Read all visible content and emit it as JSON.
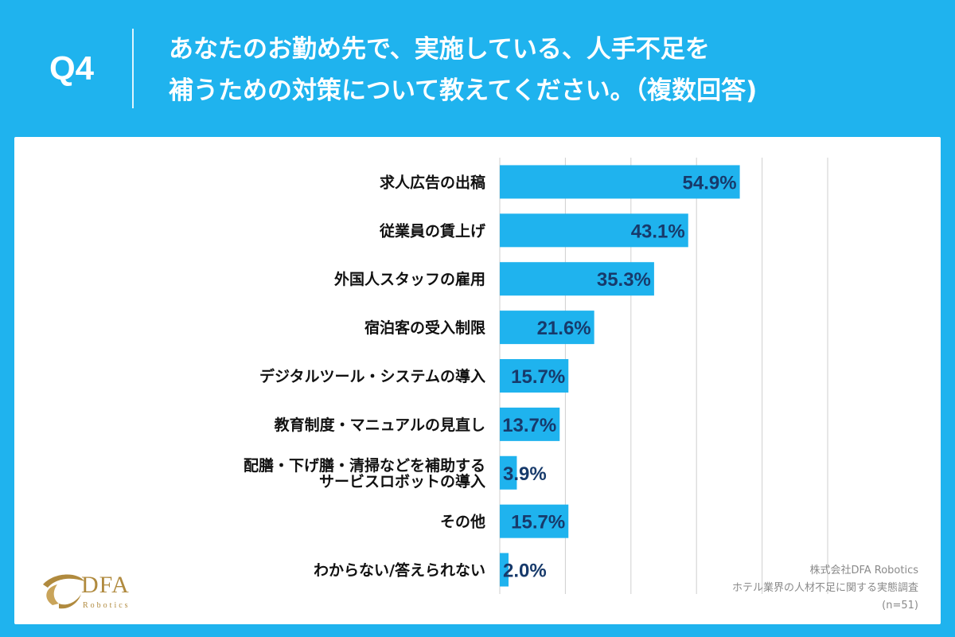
{
  "header": {
    "question_label": "Q4",
    "title_line1": "あなたのお勤め先で、実施している、人手不足を",
    "title_line2": "補うための対策について教えてください。（複数回答)"
  },
  "chart_data": {
    "type": "bar",
    "orientation": "horizontal",
    "categories": [
      "求人広告の出稿",
      "従業員の賃上げ",
      "外国人スタッフの雇用",
      "宿泊客の受入制限",
      "デジタルツール・システムの導入",
      "教育制度・マニュアルの見直し",
      "配膳・下げ膳・清掃などを補助する\nサービスロボットの導入",
      "その他",
      "わからない/答えられない"
    ],
    "values": [
      54.9,
      43.1,
      35.3,
      21.6,
      15.7,
      13.7,
      3.9,
      15.7,
      2.0
    ],
    "value_labels": [
      "54.9%",
      "43.1%",
      "35.3%",
      "21.6%",
      "15.7%",
      "13.7%",
      "3.9%",
      "15.7%",
      "2.0%"
    ],
    "xlim": [
      0,
      75
    ],
    "gridlines": [
      15,
      30,
      45,
      60,
      75
    ],
    "bar_color": "#1fb3ee",
    "value_label_color": "#173a6b"
  },
  "footer": {
    "logo_name": "DFA",
    "logo_sub": "Robotics",
    "source_line1": "株式会社DFA Robotics",
    "source_line2": "ホテル業界の人材不足に関する実態調査",
    "source_line3": "(n=51)"
  },
  "colors": {
    "background": "#1fb3ee",
    "panel": "#ffffff",
    "logo_gold": "#b08a3e"
  }
}
